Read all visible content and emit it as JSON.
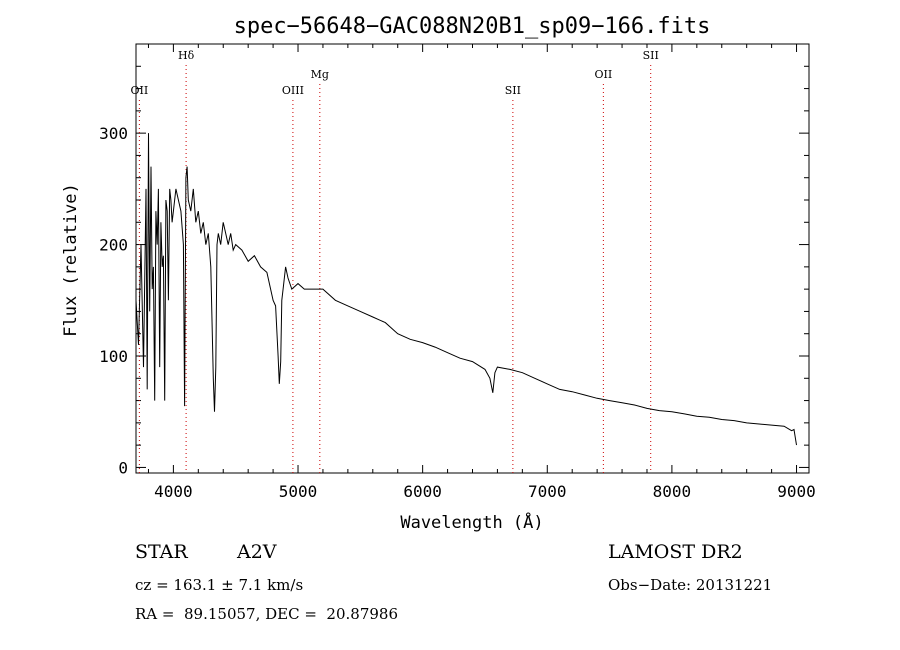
{
  "chart_data": {
    "type": "line",
    "title": "spec−56648−GAC088N20B1_sp09−166.fits",
    "xlabel": "Wavelength (Å)",
    "ylabel": "Flux (relative)",
    "xlim": [
      3700,
      9100
    ],
    "ylim": [
      -5,
      380
    ],
    "x_ticks": [
      4000,
      5000,
      6000,
      7000,
      8000,
      9000
    ],
    "y_ticks": [
      0,
      100,
      200,
      300
    ],
    "line_color": "#000000",
    "marker_color": "#cc0000",
    "series": [
      {
        "x": [
          3700,
          3720,
          3740,
          3760,
          3780,
          3790,
          3800,
          3810,
          3820,
          3830,
          3840,
          3850,
          3860,
          3870,
          3880,
          3890,
          3900,
          3910,
          3920,
          3930,
          3940,
          3950,
          3960,
          3970,
          3980,
          3990,
          4000,
          4020,
          4040,
          4060,
          4080,
          4090,
          4100,
          4110,
          4120,
          4140,
          4160,
          4180,
          4200,
          4220,
          4240,
          4260,
          4280,
          4300,
          4320,
          4330,
          4340,
          4350,
          4360,
          4380,
          4400,
          4420,
          4440,
          4460,
          4480,
          4500,
          4550,
          4600,
          4650,
          4700,
          4750,
          4800,
          4820,
          4840,
          4850,
          4861,
          4870,
          4880,
          4900,
          4920,
          4950,
          5000,
          5050,
          5100,
          5200,
          5300,
          5400,
          5500,
          5600,
          5700,
          5800,
          5900,
          6000,
          6100,
          6200,
          6300,
          6400,
          6500,
          6540,
          6563,
          6580,
          6600,
          6700,
          6800,
          6900,
          7000,
          7100,
          7200,
          7300,
          7400,
          7500,
          7600,
          7700,
          7800,
          7900,
          8000,
          8100,
          8200,
          8300,
          8400,
          8500,
          8600,
          8700,
          8800,
          8900,
          8960,
          8980,
          9000
        ],
        "y": [
          150,
          110,
          200,
          90,
          250,
          70,
          300,
          140,
          270,
          160,
          180,
          60,
          230,
          200,
          250,
          90,
          220,
          180,
          190,
          60,
          240,
          230,
          150,
          250,
          240,
          220,
          230,
          250,
          240,
          230,
          200,
          55,
          260,
          270,
          240,
          230,
          250,
          220,
          230,
          210,
          220,
          200,
          210,
          180,
          80,
          50,
          90,
          200,
          210,
          200,
          220,
          210,
          200,
          210,
          195,
          200,
          195,
          185,
          190,
          180,
          175,
          150,
          145,
          100,
          75,
          95,
          150,
          160,
          180,
          170,
          160,
          165,
          160,
          160,
          160,
          150,
          145,
          140,
          135,
          130,
          120,
          115,
          112,
          108,
          103,
          98,
          95,
          88,
          80,
          67,
          85,
          90,
          88,
          85,
          80,
          75,
          70,
          68,
          65,
          62,
          60,
          58,
          56,
          53,
          51,
          50,
          48,
          46,
          45,
          43,
          42,
          40,
          39,
          38,
          37,
          33,
          34,
          20
        ]
      }
    ],
    "lines": [
      {
        "label": "OII",
        "x": 3727
      },
      {
        "label": "Hδ",
        "x": 4102
      },
      {
        "label": "OIII",
        "x": 4959
      },
      {
        "label": "Mg",
        "x": 5175
      },
      {
        "label": "SII",
        "x": 6724
      },
      {
        "label": "OII",
        "x": 7450
      },
      {
        "label": "SII",
        "x": 7830
      }
    ]
  },
  "info": {
    "object_class": "STAR",
    "subclass": "A2V",
    "survey": "LAMOST DR2",
    "cz": "cz = 163.1 ± 7.1 km/s",
    "obs_date": "Obs−Date: 20131221",
    "coords": "RA =  89.15057, DEC =  20.87986"
  }
}
